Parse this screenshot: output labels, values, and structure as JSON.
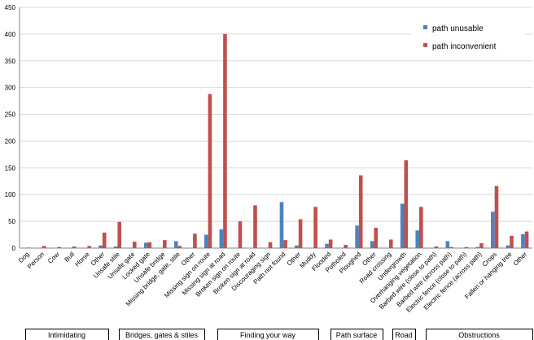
{
  "chart_data": {
    "type": "bar",
    "title": "",
    "xlabel": "",
    "ylabel": "",
    "ylim": [
      0,
      450
    ],
    "yticks": [
      0,
      50,
      100,
      150,
      200,
      250,
      300,
      350,
      400,
      450
    ],
    "grid": "horizontal",
    "legend_position": "top-right",
    "categories": [
      "Dog",
      "Person",
      "Cow",
      "Bull",
      "Horse",
      "Other",
      "Unsafe stile",
      "Unsafe gate",
      "Locked gate",
      "Unsafe bridge",
      "Missing bridge, gate, stile",
      "Other",
      "Missing sign on route",
      "Missing sign at road",
      "Broken sign on route",
      "Broken sign at road",
      "Discouraging sign",
      "Path not found",
      "Other",
      "Muddy",
      "Flooded",
      "Potholed",
      "Ploughed",
      "Other",
      "Road crossing",
      "Undergrowth",
      "Overhanging vegetation",
      "Barbed wire (close to path)",
      "Barbed wire (across path)",
      "Electric fence (close to path)",
      "Electric fence (across path)",
      "Crops",
      "Fallen or hanging tree",
      "Other"
    ],
    "series": [
      {
        "name": "path unusable",
        "color": "#4f81bd",
        "values": [
          0,
          0,
          0,
          0,
          0,
          5,
          3,
          0,
          10,
          0,
          13,
          0,
          25,
          35,
          0,
          0,
          0,
          86,
          5,
          0,
          8,
          0,
          42,
          13,
          0,
          83,
          33,
          0,
          13,
          0,
          2,
          68,
          5,
          26
        ]
      },
      {
        "name": "path inconvenient",
        "color": "#c0504d",
        "values": [
          1,
          4,
          2,
          3,
          4,
          29,
          49,
          12,
          11,
          15,
          4,
          27,
          288,
          400,
          50,
          80,
          11,
          15,
          54,
          77,
          16,
          6,
          136,
          38,
          16,
          164,
          77,
          3,
          2,
          2,
          9,
          116,
          23,
          31
        ]
      }
    ],
    "groups": [
      {
        "label": "Intimidating",
        "start": 0,
        "end": 5
      },
      {
        "label": "Bridges, gates & stiles",
        "start": 6,
        "end": 11
      },
      {
        "label": "Finding your way",
        "start": 12,
        "end": 18
      },
      {
        "label": "Path surface",
        "start": 19,
        "end": 23
      },
      {
        "label": "Road",
        "start": 24,
        "end": 24
      },
      {
        "label": "Obstructions",
        "start": 25,
        "end": 33
      }
    ]
  }
}
